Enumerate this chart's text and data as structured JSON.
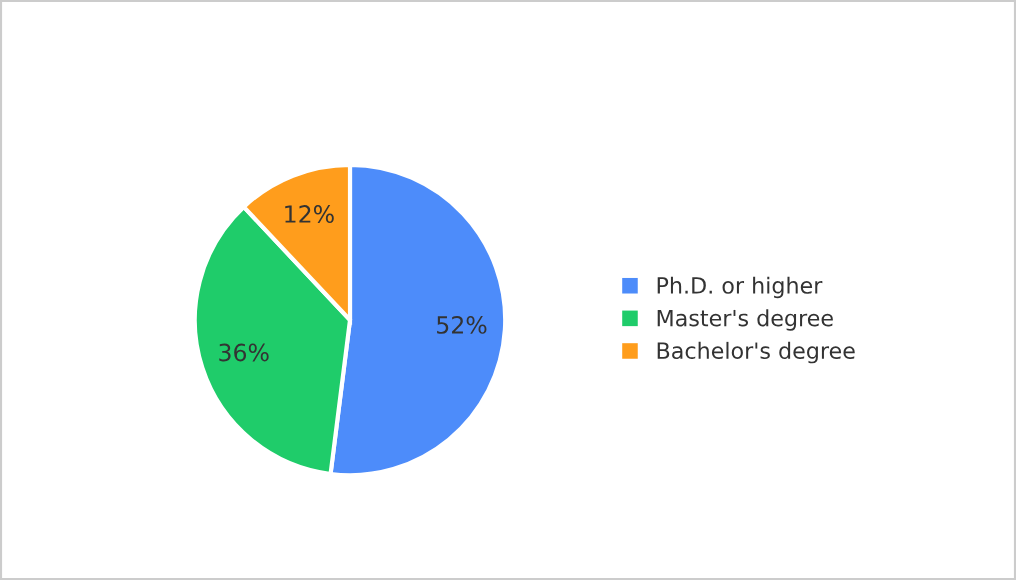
{
  "chart_data": {
    "type": "pie",
    "categories": [
      "Ph.D. or higher",
      "Master's degree",
      "Bachelor's degree"
    ],
    "values": [
      52,
      36,
      12
    ],
    "colors": [
      "#4d8cfa",
      "#1fcc6a",
      "#ff9d1c"
    ],
    "value_labels": [
      "52%",
      "36%",
      "12%"
    ],
    "legend": "right"
  }
}
